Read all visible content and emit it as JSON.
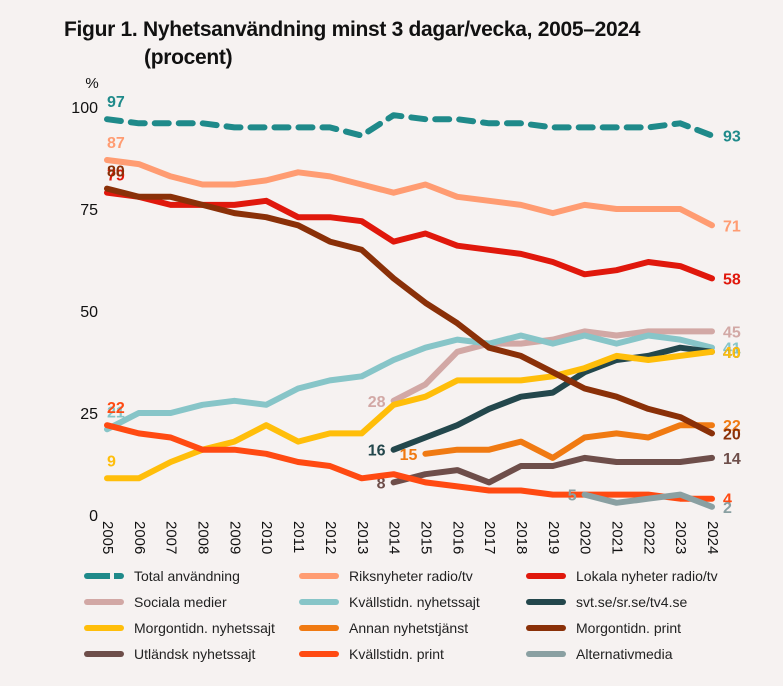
{
  "chart_data": {
    "type": "line",
    "title": "Figur 1. Nyhetsanvändning minst 3 dagar/vecka, 2005–2024",
    "subtitle": "(procent)",
    "ylabel": "%",
    "xlabel": "",
    "ylim": [
      0,
      100
    ],
    "yticks": [
      0,
      25,
      50,
      75,
      100
    ],
    "grid": false,
    "legend_position": "bottom",
    "x": [
      "2005",
      "2006",
      "2007",
      "2008",
      "2009",
      "2010",
      "2011",
      "2012",
      "2013",
      "2014",
      "2015",
      "2016",
      "2017",
      "2018",
      "2019",
      "2020",
      "2021",
      "2022",
      "2023",
      "2024"
    ],
    "series": [
      {
        "name": "Total användning",
        "color": "#1f8a8a",
        "dashed": true,
        "start_label": "97",
        "end_label": "93",
        "values": [
          97,
          96,
          96,
          96,
          95,
          95,
          95,
          95,
          93,
          98,
          97,
          97,
          96,
          96,
          95,
          95,
          95,
          95,
          96,
          93
        ]
      },
      {
        "name": "Riksnyheter radio/tv",
        "color": "#ff9c72",
        "start_label": "87",
        "end_label": "71",
        "values": [
          87,
          86,
          83,
          81,
          81,
          82,
          84,
          83,
          81,
          79,
          81,
          78,
          77,
          76,
          74,
          76,
          75,
          75,
          75,
          71
        ]
      },
      {
        "name": "Lokala nyheter radio/tv",
        "color": "#e0180c",
        "start_label": "79",
        "end_label": "58",
        "values": [
          79,
          78,
          76,
          76,
          76,
          77,
          73,
          73,
          72,
          67,
          69,
          66,
          65,
          64,
          62,
          59,
          60,
          62,
          61,
          58
        ]
      },
      {
        "name": "Sociala medier",
        "color": "#d2a8a5",
        "start_label": "28",
        "end_label": "45",
        "values": [
          null,
          null,
          null,
          null,
          null,
          null,
          null,
          null,
          null,
          28,
          32,
          40,
          42,
          42,
          43,
          45,
          44,
          45,
          45,
          45
        ]
      },
      {
        "name": "Kvällstidn. nyhetssajt",
        "color": "#87c5c8",
        "start_label": "21",
        "end_label": "41",
        "values": [
          21,
          25,
          25,
          27,
          28,
          27,
          31,
          33,
          34,
          38,
          41,
          43,
          42,
          44,
          42,
          44,
          42,
          44,
          43,
          41
        ]
      },
      {
        "name": "svt.se/sr.se/tv4.se",
        "color": "#23474c",
        "start_label": "16",
        "end_label": "40",
        "values": [
          null,
          null,
          null,
          null,
          null,
          null,
          null,
          null,
          null,
          16,
          19,
          22,
          26,
          29,
          30,
          35,
          38,
          39,
          41,
          40
        ]
      },
      {
        "name": "Morgontidn. nyhetssajt",
        "color": "#ffbe0a",
        "start_label": "9",
        "end_label": "40",
        "values": [
          9,
          9,
          13,
          16,
          18,
          22,
          18,
          20,
          20,
          27,
          29,
          33,
          33,
          33,
          34,
          36,
          39,
          38,
          39,
          40
        ]
      },
      {
        "name": "Annan nyhetstjänst",
        "color": "#f07a12",
        "start_label": "15",
        "end_label": "22",
        "values": [
          null,
          null,
          null,
          null,
          null,
          null,
          null,
          null,
          null,
          null,
          15,
          16,
          16,
          18,
          14,
          19,
          20,
          19,
          22,
          22
        ]
      },
      {
        "name": "Morgontidn. print",
        "color": "#8a3008",
        "start_label": "80",
        "end_label": "20",
        "values": [
          80,
          78,
          78,
          76,
          74,
          73,
          71,
          67,
          65,
          58,
          52,
          47,
          41,
          39,
          35,
          31,
          29,
          26,
          24,
          20
        ]
      },
      {
        "name": "Utländsk nyhetssajt",
        "color": "#6e4e4a",
        "start_label": "8",
        "end_label": "14",
        "values": [
          null,
          null,
          null,
          null,
          null,
          null,
          null,
          null,
          null,
          8,
          10,
          11,
          8,
          12,
          12,
          14,
          13,
          13,
          13,
          14
        ]
      },
      {
        "name": "Kvällstidn. print",
        "color": "#ff4a12",
        "start_label": "22",
        "end_label": "4",
        "values": [
          22,
          20,
          19,
          16,
          16,
          15,
          13,
          12,
          9,
          10,
          8,
          7,
          6,
          6,
          5,
          5,
          5,
          5,
          4,
          4
        ]
      },
      {
        "name": "Alternativmedia",
        "color": "#8aa0a2",
        "start_label": "5",
        "end_label": "2",
        "values": [
          null,
          null,
          null,
          null,
          null,
          null,
          null,
          null,
          null,
          null,
          null,
          null,
          null,
          null,
          null,
          5,
          3,
          4,
          5,
          2
        ]
      }
    ]
  }
}
